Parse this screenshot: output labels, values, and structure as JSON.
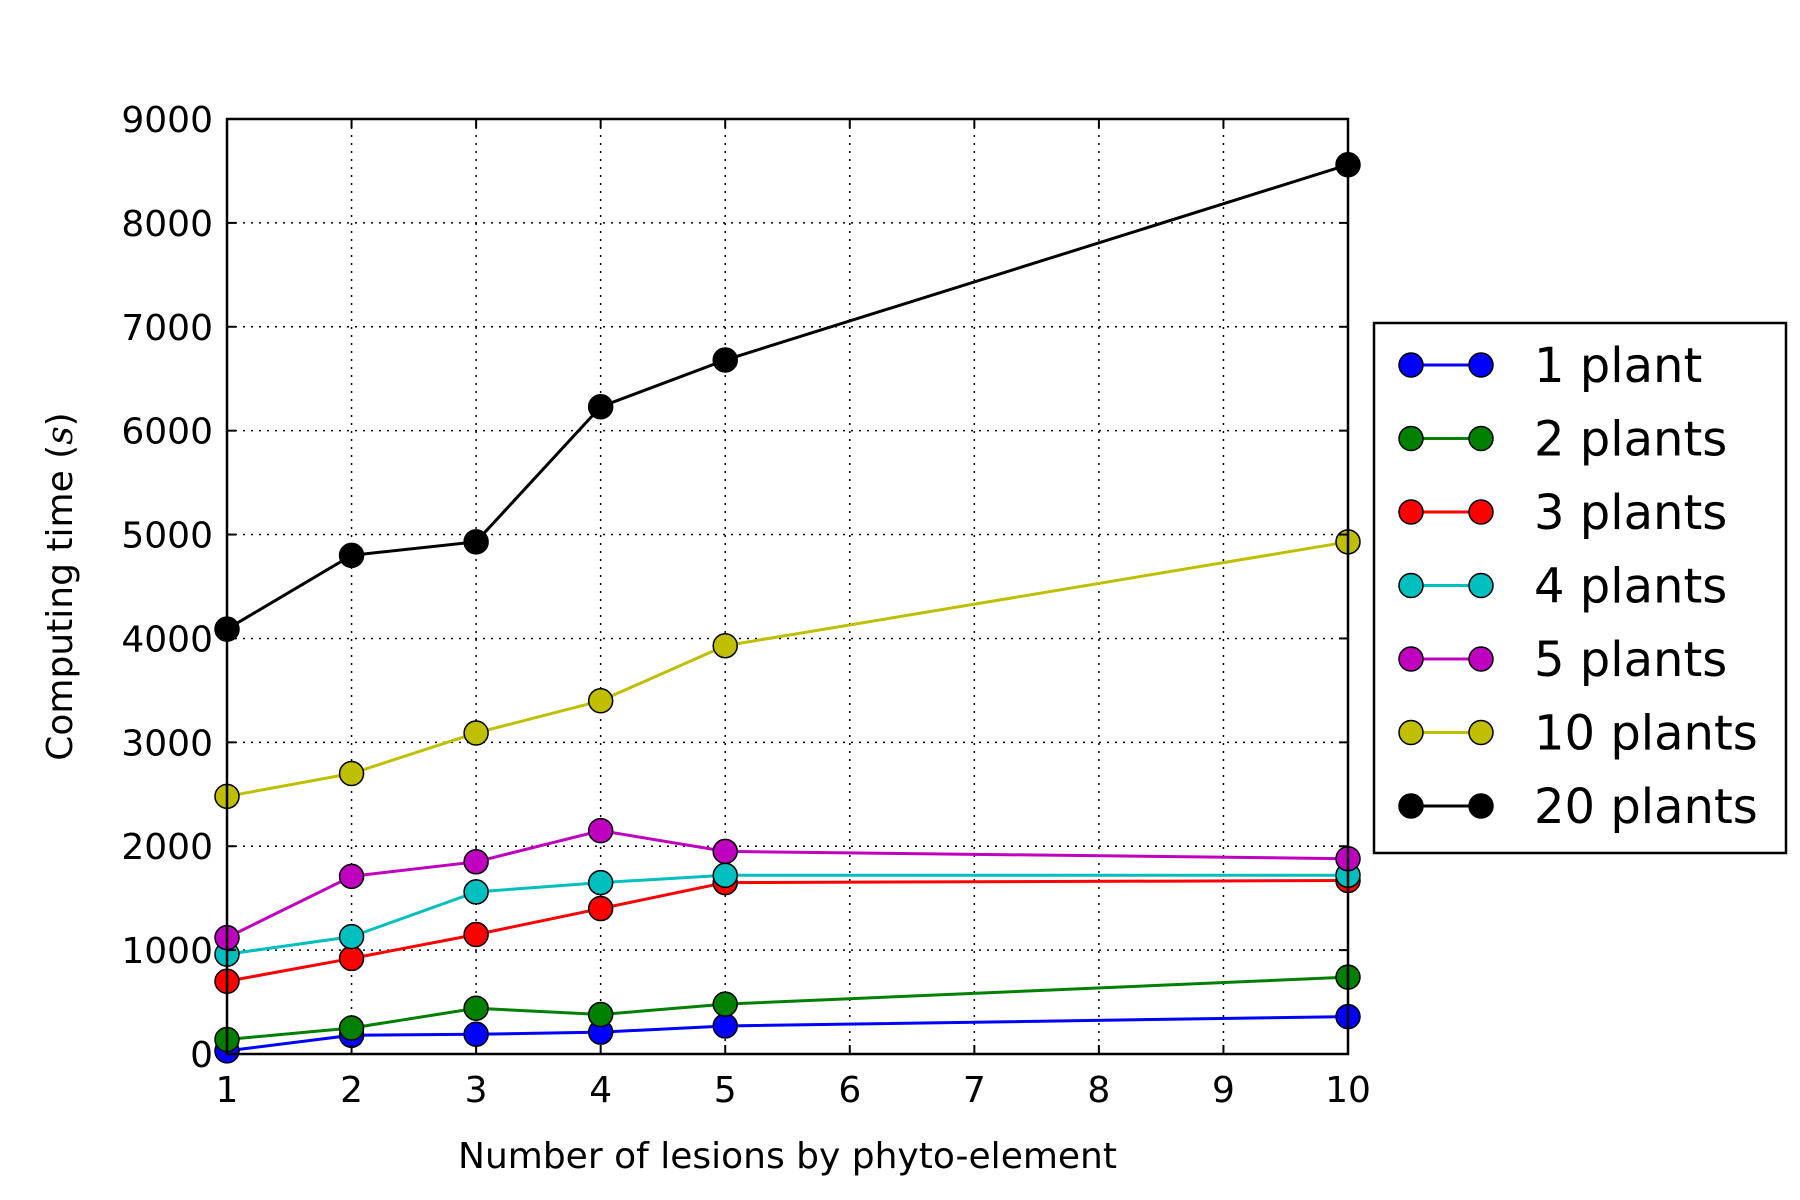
{
  "chart_data": {
    "type": "line",
    "title": "",
    "xlabel": "Number of lesions by phyto-element",
    "ylabel_prefix": "Computing time (",
    "ylabel_unit": "s",
    "ylabel_suffix": ")",
    "xlim": [
      1,
      10
    ],
    "ylim": [
      0,
      9000
    ],
    "x_ticks": [
      1,
      2,
      3,
      4,
      5,
      6,
      7,
      8,
      9,
      10
    ],
    "y_ticks": [
      0,
      1000,
      2000,
      3000,
      4000,
      5000,
      6000,
      7000,
      8000,
      9000
    ],
    "grid": true,
    "legend_position": "outside-right",
    "x": [
      1,
      2,
      3,
      4,
      5,
      10
    ],
    "series": [
      {
        "name": "1 plant",
        "color": "#0000ff",
        "values": [
          30,
          180,
          190,
          210,
          270,
          360
        ]
      },
      {
        "name": "2 plants",
        "color": "#008000",
        "values": [
          140,
          250,
          440,
          380,
          480,
          740
        ]
      },
      {
        "name": "3 plants",
        "color": "#ff0000",
        "values": [
          700,
          920,
          1150,
          1400,
          1650,
          1670
        ]
      },
      {
        "name": "4 plants",
        "color": "#00bfbf",
        "values": [
          960,
          1130,
          1560,
          1650,
          1720,
          1720
        ]
      },
      {
        "name": "5 plants",
        "color": "#bf00bf",
        "values": [
          1120,
          1710,
          1850,
          2150,
          1950,
          1880
        ]
      },
      {
        "name": "10 plants",
        "color": "#bfbf00",
        "values": [
          2480,
          2700,
          3090,
          3400,
          3930,
          4930
        ]
      },
      {
        "name": "20 plants",
        "color": "#000000",
        "values": [
          4090,
          4800,
          4930,
          6230,
          6680,
          8560
        ]
      }
    ]
  }
}
